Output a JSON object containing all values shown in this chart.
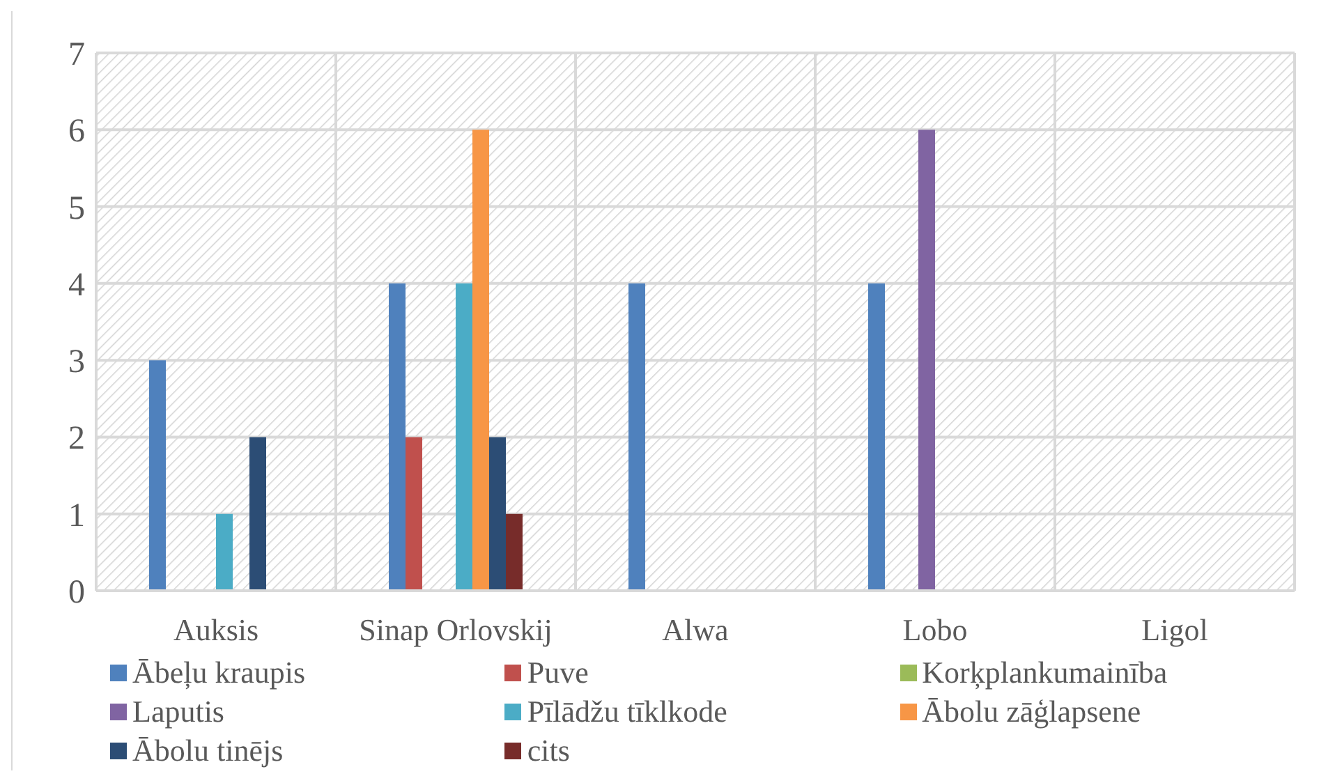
{
  "chart_data": {
    "type": "bar",
    "categories": [
      "Auksis",
      "Sinap Orlovskij",
      "Alwa",
      "Lobo",
      "Ligol"
    ],
    "series": [
      {
        "name": "Ābeļu kraupis",
        "color": "#4f81bd",
        "values": [
          3,
          4,
          4,
          4,
          0
        ]
      },
      {
        "name": "Puve",
        "color": "#c0504d",
        "values": [
          0,
          2,
          0,
          0,
          0
        ]
      },
      {
        "name": "Korķplankumainība",
        "color": "#9bbb59",
        "values": [
          0,
          0,
          0,
          0,
          0
        ]
      },
      {
        "name": "Laputis",
        "color": "#8064a2",
        "values": [
          0,
          0,
          0,
          6,
          0
        ]
      },
      {
        "name": "Pīlādžu tīklkode",
        "color": "#4bacc6",
        "values": [
          1,
          4,
          0,
          0,
          0
        ]
      },
      {
        "name": "Ābolu zāģlapsene",
        "color": "#f79646",
        "values": [
          0,
          6,
          0,
          0,
          0
        ]
      },
      {
        "name": "Ābolu tinējs",
        "color": "#2c4d75",
        "values": [
          2,
          2,
          0,
          0,
          0
        ]
      },
      {
        "name": "cits",
        "color": "#772c2a",
        "values": [
          0,
          1,
          0,
          0,
          0
        ]
      }
    ],
    "ylim": [
      0,
      7
    ],
    "yticks": [
      0,
      1,
      2,
      3,
      4,
      5,
      6,
      7
    ],
    "grid": true,
    "legend": "bottom"
  }
}
